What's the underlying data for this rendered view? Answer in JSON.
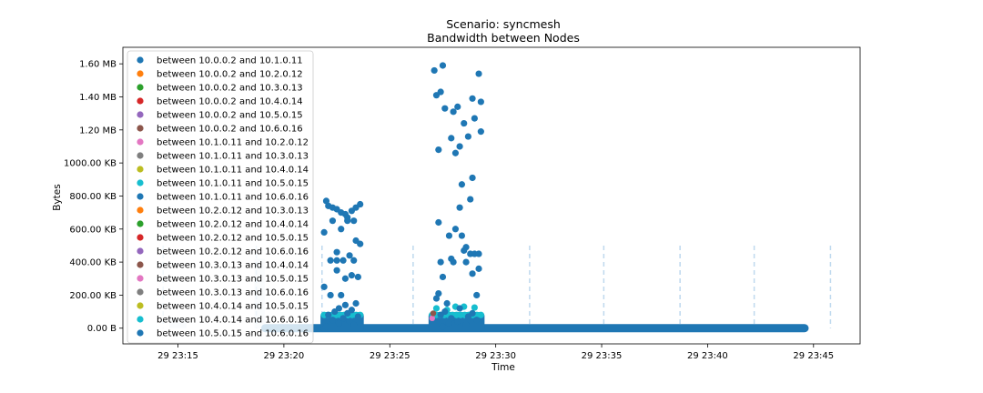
{
  "chart_data": {
    "type": "scatter",
    "title": "Scenario: syncmesh",
    "subtitle": "Bandwidth between Nodes",
    "xlabel": "Time",
    "ylabel": "Bytes",
    "ylim": [
      -95000,
      1700000
    ],
    "xlim_minutes": [
      -2.6,
      32.2
    ],
    "x_tick_labels": [
      "29 23:15",
      "29 23:20",
      "29 23:25",
      "29 23:30",
      "29 23:35",
      "29 23:40",
      "29 23:45"
    ],
    "x_tick_minutes": [
      0,
      5,
      10,
      15,
      20,
      25,
      30
    ],
    "y_ticks": [
      {
        "value": 0,
        "label": "0.00 B"
      },
      {
        "value": 200000,
        "label": "200.00 KB"
      },
      {
        "value": 400000,
        "label": "400.00 KB"
      },
      {
        "value": 600000,
        "label": "600.00 KB"
      },
      {
        "value": 800000,
        "label": "800.00 KB"
      },
      {
        "value": 1000000,
        "label": "1000.00 KB"
      },
      {
        "value": 1200000,
        "label": "1.20 MB"
      },
      {
        "value": 1400000,
        "label": "1.40 MB"
      },
      {
        "value": 1600000,
        "label": "1.60 MB"
      }
    ],
    "vertical_markers_minutes": [
      -0.7,
      3.7,
      6.8,
      11.1,
      16.6,
      20.1,
      23.7,
      27.2,
      30.8
    ],
    "baseline_range_minutes": [
      4.1,
      29.6
    ],
    "legend_position": "upper-left",
    "series": [
      {
        "name": "between 10.0.0.2 and 10.1.0.11",
        "color": "#1f77b4"
      },
      {
        "name": "between 10.0.0.2 and 10.2.0.12",
        "color": "#ff7f0e"
      },
      {
        "name": "between 10.0.0.2 and 10.3.0.13",
        "color": "#2ca02c"
      },
      {
        "name": "between 10.0.0.2 and 10.4.0.14",
        "color": "#d62728"
      },
      {
        "name": "between 10.0.0.2 and 10.5.0.15",
        "color": "#9467bd"
      },
      {
        "name": "between 10.0.0.2 and 10.6.0.16",
        "color": "#8c564b"
      },
      {
        "name": "between 10.1.0.11 and 10.2.0.12",
        "color": "#e377c2"
      },
      {
        "name": "between 10.1.0.11 and 10.3.0.13",
        "color": "#7f7f7f"
      },
      {
        "name": "between 10.1.0.11 and 10.4.0.14",
        "color": "#bcbd22"
      },
      {
        "name": "between 10.1.0.11 and 10.5.0.15",
        "color": "#17becf"
      },
      {
        "name": "between 10.1.0.11 and 10.6.0.16",
        "color": "#1f77b4"
      },
      {
        "name": "between 10.2.0.12 and 10.3.0.13",
        "color": "#ff7f0e"
      },
      {
        "name": "between 10.2.0.12 and 10.4.0.14",
        "color": "#2ca02c"
      },
      {
        "name": "between 10.2.0.12 and 10.5.0.15",
        "color": "#d62728"
      },
      {
        "name": "between 10.2.0.12 and 10.6.0.16",
        "color": "#9467bd"
      },
      {
        "name": "between 10.3.0.13 and 10.4.0.14",
        "color": "#8c564b"
      },
      {
        "name": "between 10.3.0.13 and 10.5.0.15",
        "color": "#e377c2"
      },
      {
        "name": "between 10.3.0.13 and 10.6.0.16",
        "color": "#7f7f7f"
      },
      {
        "name": "between 10.4.0.14 and 10.5.0.15",
        "color": "#bcbd22"
      },
      {
        "name": "between 10.4.0.14 and 10.6.0.16",
        "color": "#17becf"
      },
      {
        "name": "between 10.5.0.15 and 10.6.0.16",
        "color": "#1f77b4"
      }
    ],
    "bursts": [
      {
        "series_color": "#1f77b4",
        "points": [
          [
            7.0,
            770000
          ],
          [
            7.1,
            740000
          ],
          [
            7.3,
            730000
          ],
          [
            7.5,
            720000
          ],
          [
            7.7,
            700000
          ],
          [
            7.9,
            690000
          ],
          [
            8.0,
            670000
          ],
          [
            8.2,
            710000
          ],
          [
            8.4,
            730000
          ],
          [
            8.6,
            750000
          ],
          [
            8.0,
            650000
          ],
          [
            8.3,
            650000
          ],
          [
            7.3,
            650000
          ],
          [
            6.9,
            580000
          ],
          [
            7.7,
            600000
          ],
          [
            8.4,
            530000
          ],
          [
            8.6,
            510000
          ],
          [
            7.5,
            460000
          ],
          [
            8.1,
            440000
          ],
          [
            7.2,
            410000
          ],
          [
            7.5,
            410000
          ],
          [
            7.8,
            410000
          ],
          [
            8.3,
            410000
          ],
          [
            7.5,
            350000
          ],
          [
            8.2,
            320000
          ],
          [
            8.5,
            310000
          ],
          [
            7.9,
            300000
          ],
          [
            6.9,
            250000
          ],
          [
            7.2,
            200000
          ],
          [
            7.7,
            200000
          ],
          [
            8.4,
            150000
          ],
          [
            7.9,
            140000
          ],
          [
            7.6,
            120000
          ],
          [
            8.2,
            110000
          ],
          [
            7.4,
            100000
          ],
          [
            8.0,
            90000
          ],
          [
            7.1,
            80000
          ],
          [
            8.5,
            70000
          ],
          [
            7.8,
            60000
          ],
          [
            7.3,
            50000
          ],
          [
            8.1,
            40000
          ],
          [
            7.6,
            30000
          ],
          [
            8.3,
            20000
          ],
          [
            7.0,
            10000
          ]
        ]
      },
      {
        "series_color": "#1f77b4",
        "points": [
          [
            12.1,
            1560000
          ],
          [
            12.5,
            1590000
          ],
          [
            14.2,
            1540000
          ],
          [
            12.2,
            1410000
          ],
          [
            12.4,
            1430000
          ],
          [
            13.9,
            1390000
          ],
          [
            14.3,
            1370000
          ],
          [
            12.6,
            1330000
          ],
          [
            13.0,
            1310000
          ],
          [
            13.2,
            1340000
          ],
          [
            14.0,
            1270000
          ],
          [
            13.5,
            1240000
          ],
          [
            14.3,
            1190000
          ],
          [
            13.7,
            1160000
          ],
          [
            12.9,
            1150000
          ],
          [
            13.3,
            1100000
          ],
          [
            12.3,
            1080000
          ],
          [
            13.1,
            1060000
          ],
          [
            13.9,
            910000
          ],
          [
            13.4,
            870000
          ],
          [
            13.8,
            780000
          ],
          [
            13.3,
            730000
          ],
          [
            12.3,
            640000
          ],
          [
            13.1,
            600000
          ],
          [
            12.8,
            560000
          ],
          [
            13.4,
            560000
          ],
          [
            13.6,
            490000
          ],
          [
            13.5,
            470000
          ],
          [
            13.8,
            450000
          ],
          [
            14.0,
            450000
          ],
          [
            14.2,
            450000
          ],
          [
            12.9,
            420000
          ],
          [
            12.4,
            400000
          ],
          [
            13.0,
            400000
          ],
          [
            13.6,
            400000
          ],
          [
            14.2,
            360000
          ],
          [
            13.9,
            330000
          ],
          [
            12.5,
            310000
          ],
          [
            12.3,
            210000
          ],
          [
            12.2,
            180000
          ],
          [
            14.1,
            200000
          ],
          [
            12.7,
            150000
          ],
          [
            13.3,
            120000
          ],
          [
            12.6,
            100000
          ],
          [
            13.9,
            90000
          ],
          [
            12.4,
            80000
          ],
          [
            13.7,
            70000
          ],
          [
            12.9,
            60000
          ],
          [
            14.1,
            50000
          ],
          [
            13.2,
            40000
          ],
          [
            12.8,
            30000
          ],
          [
            13.6,
            20000
          ],
          [
            12.5,
            10000
          ]
        ]
      }
    ],
    "cyan_band_y": 80000,
    "cyan_bursts_minutes": [
      [
        6.9,
        8.6
      ],
      [
        12.0,
        14.3
      ]
    ],
    "cyan_extra_points": [
      [
        13.1,
        130000
      ],
      [
        13.5,
        130000
      ],
      [
        12.2,
        120000
      ],
      [
        14.0,
        125000
      ],
      [
        12.7,
        110000
      ]
    ],
    "dense_block_y_range": [
      0,
      75000
    ],
    "dense_blocks_minutes": [
      [
        6.9,
        8.6
      ],
      [
        12.0,
        14.3
      ]
    ]
  }
}
